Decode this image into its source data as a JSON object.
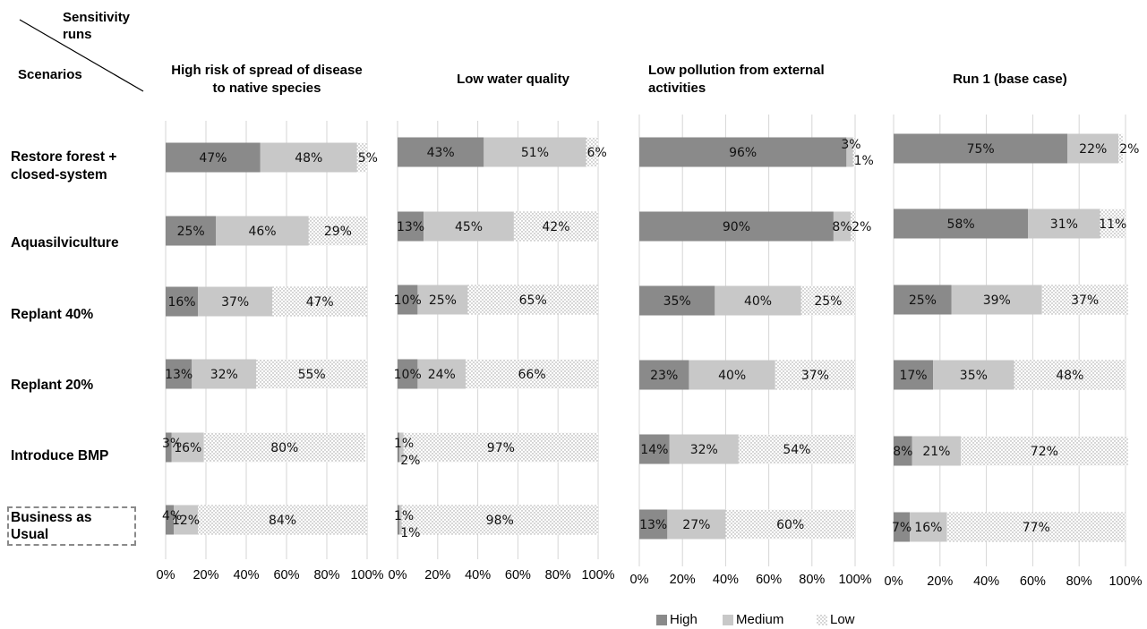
{
  "corner": {
    "top_label": "Sensitivity\nruns",
    "bottom_label": "Scenarios"
  },
  "rows": [
    "Restore forest +\nclosed-system",
    "Aquasilviculture",
    "Replant 40%",
    "Replant 20%",
    "Introduce BMP",
    "Business as\nUsual"
  ],
  "legend": [
    {
      "name": "High",
      "color": "#8a8a8a"
    },
    {
      "name": "Medium",
      "color": "#c8c8c8"
    },
    {
      "name": "Low",
      "color": "dotted"
    }
  ],
  "colors": {
    "high": "#8a8a8a",
    "medium": "#c8c8c8",
    "low_dots": "#9a9a9a",
    "grid": "#d6d6d6"
  },
  "chart_data": [
    {
      "type": "bar",
      "orientation": "horizontal",
      "stacked": true,
      "title": "High risk of spread of disease\nto native species",
      "categories": [
        "Restore forest + closed-system",
        "Aquasilviculture",
        "Replant 40%",
        "Replant 20%",
        "Introduce BMP",
        "Business as Usual"
      ],
      "series": [
        {
          "name": "High",
          "values": [
            47,
            25,
            16,
            13,
            3,
            4
          ]
        },
        {
          "name": "Medium",
          "values": [
            48,
            46,
            37,
            32,
            16,
            12
          ]
        },
        {
          "name": "Low",
          "values": [
            5,
            29,
            47,
            55,
            80,
            84
          ]
        }
      ],
      "labels": [
        [
          "47%",
          "48%",
          "5%"
        ],
        [
          "25%",
          "46%",
          "29%"
        ],
        [
          "16%",
          "37%",
          "47%"
        ],
        [
          "13%",
          "32%",
          "55%"
        ],
        [
          "3%",
          "16%",
          "80%"
        ],
        [
          "4%",
          "12%",
          "84%"
        ]
      ],
      "xticks": [
        "0%",
        "20%",
        "40%",
        "60%",
        "80%",
        "100%"
      ],
      "xlim": [
        0,
        100
      ]
    },
    {
      "type": "bar",
      "orientation": "horizontal",
      "stacked": true,
      "title": "Low water quality",
      "categories": [
        "Restore forest + closed-system",
        "Aquasilviculture",
        "Replant 40%",
        "Replant 20%",
        "Introduce BMP",
        "Business as Usual"
      ],
      "series": [
        {
          "name": "High",
          "values": [
            43,
            13,
            10,
            10,
            1,
            1
          ]
        },
        {
          "name": "Medium",
          "values": [
            51,
            45,
            25,
            24,
            2,
            1
          ]
        },
        {
          "name": "Low",
          "values": [
            6,
            42,
            65,
            66,
            97,
            98
          ]
        }
      ],
      "labels": [
        [
          "43%",
          "51%",
          "6%"
        ],
        [
          "13%",
          "45%",
          "42%"
        ],
        [
          "10%",
          "25%",
          "65%"
        ],
        [
          "10%",
          "24%",
          "66%"
        ],
        [
          "1%",
          "2%",
          "97%"
        ],
        [
          "1%",
          "1%",
          "98%"
        ]
      ],
      "xticks": [
        "0%",
        "20%",
        "40%",
        "60%",
        "80%",
        "100%"
      ],
      "xlim": [
        0,
        100
      ]
    },
    {
      "type": "bar",
      "orientation": "horizontal",
      "stacked": true,
      "title": "Low pollution from external\nactivities",
      "categories": [
        "Restore forest + closed-system",
        "Aquasilviculture",
        "Replant 40%",
        "Replant 20%",
        "Introduce BMP",
        "Business as Usual"
      ],
      "series": [
        {
          "name": "High",
          "values": [
            96,
            90,
            35,
            23,
            14,
            13
          ]
        },
        {
          "name": "Medium",
          "values": [
            3,
            8,
            40,
            40,
            32,
            27
          ]
        },
        {
          "name": "Low",
          "values": [
            1,
            2,
            25,
            37,
            54,
            60
          ]
        }
      ],
      "labels": [
        [
          "96%",
          "3%",
          "1%"
        ],
        [
          "90%",
          "8%",
          "2%"
        ],
        [
          "35%",
          "40%",
          "25%"
        ],
        [
          "23%",
          "40%",
          "37%"
        ],
        [
          "14%",
          "32%",
          "54%"
        ],
        [
          "13%",
          "27%",
          "60%"
        ]
      ],
      "xticks": [
        "0%",
        "20%",
        "40%",
        "60%",
        "80%",
        "100%"
      ],
      "xlim": [
        0,
        100
      ]
    },
    {
      "type": "bar",
      "orientation": "horizontal",
      "stacked": true,
      "title": "Run 1 (base case)",
      "categories": [
        "Restore forest + closed-system",
        "Aquasilviculture",
        "Replant 40%",
        "Replant 20%",
        "Introduce BMP",
        "Business as Usual"
      ],
      "series": [
        {
          "name": "High",
          "values": [
            75,
            58,
            25,
            17,
            8,
            7
          ]
        },
        {
          "name": "Medium",
          "values": [
            22,
            31,
            39,
            35,
            21,
            16
          ]
        },
        {
          "name": "Low",
          "values": [
            2,
            11,
            37,
            48,
            72,
            77
          ]
        }
      ],
      "labels": [
        [
          "75%",
          "22%",
          "2%"
        ],
        [
          "58%",
          "31%",
          "11%"
        ],
        [
          "25%",
          "39%",
          "37%"
        ],
        [
          "17%",
          "35%",
          "48%"
        ],
        [
          "8%",
          "21%",
          "72%"
        ],
        [
          "7%",
          "16%",
          "77%"
        ]
      ],
      "xticks": [
        "0%",
        "20%",
        "40%",
        "60%",
        "80%",
        "100%"
      ],
      "xlim": [
        0,
        100
      ]
    }
  ]
}
